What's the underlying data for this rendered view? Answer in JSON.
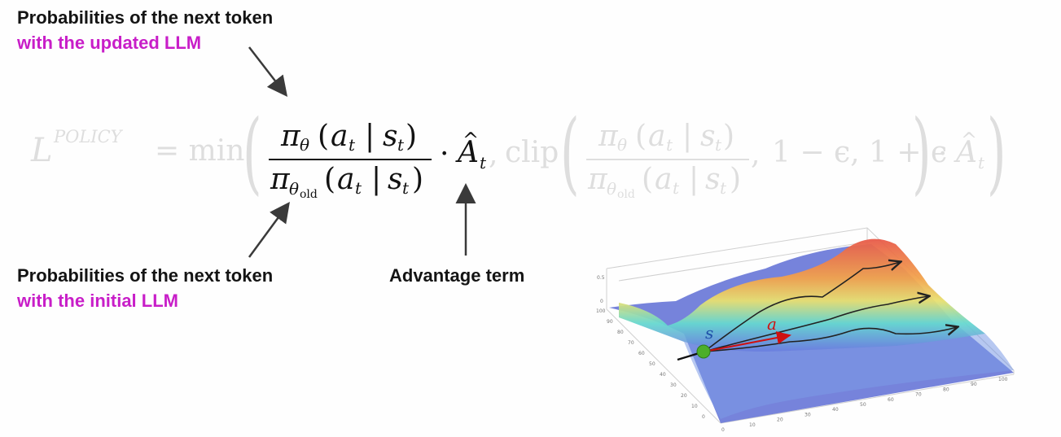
{
  "annotations": {
    "top": {
      "line1": "Probabilities of the next token",
      "line2": "with the updated LLM"
    },
    "bottom": {
      "line1": "Probabilities of the next token",
      "line2": "with the initial LLM"
    },
    "advantage": "Advantage term"
  },
  "equation": {
    "lhs_base": "L",
    "lhs_sup": "POLICY",
    "equals_min": "= min",
    "pi": "π",
    "theta": "θ",
    "old": "old",
    "a": "a",
    "t": "t",
    "s": "s",
    "bar": "|",
    "lparen": "(",
    "rparen": ")",
    "cdot": "·",
    "A": "A",
    "hat": "^",
    "comma": ",",
    "clip": "clip",
    "one_minus_eps": "1 − ϵ, 1 + ϵ"
  },
  "surface_plot": {
    "labels": {
      "state": "s",
      "action": "a"
    },
    "axis_ticks_y": [
      "100",
      "90",
      "80",
      "70",
      "60",
      "50",
      "40",
      "30",
      "20",
      "10",
      "0"
    ],
    "axis_ticks_x": [
      "0",
      "10",
      "20",
      "30",
      "40",
      "50",
      "60",
      "70",
      "80",
      "90",
      "100"
    ],
    "axis_ticks_z": [
      "0.5",
      "0"
    ],
    "colors": {
      "state_label": "#1f4fa8",
      "action_label": "#d01010",
      "agent_dot": "#4caf2a"
    }
  },
  "colors": {
    "accent_magenta": "#c81ec8",
    "faded_formula": "#dedede",
    "dark_formula": "#121212"
  }
}
